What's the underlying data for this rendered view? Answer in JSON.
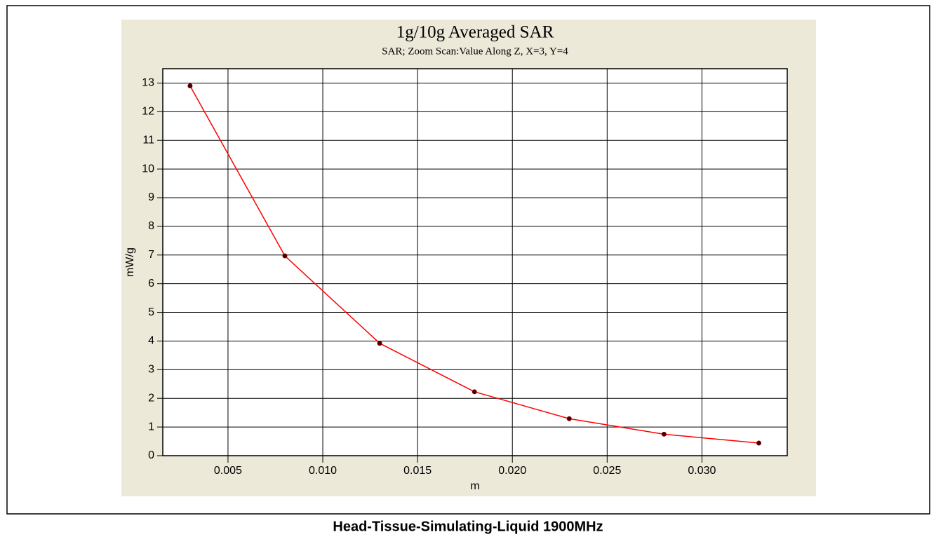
{
  "chart_data": {
    "type": "line",
    "title": "1g/10g Averaged SAR",
    "subtitle": "SAR; Zoom Scan:Value Along Z, X=3, Y=4",
    "x_label": "m",
    "y_label": "mW/g",
    "caption": "Head-Tissue-Simulating-Liquid 1900MHz",
    "x": [
      0.003,
      0.008,
      0.013,
      0.018,
      0.023,
      0.028,
      0.033
    ],
    "series": [
      {
        "color": "#ff0000",
        "values": [
          12.9,
          6.97,
          3.92,
          2.23,
          1.29,
          0.75,
          0.44
        ]
      }
    ],
    "xlim": [
      0.00156,
      0.0345
    ],
    "ylim": [
      0,
      13.5
    ],
    "xticks": [
      0.005,
      {
        "value": 0.01,
        "label": "0.010"
      },
      0.015,
      {
        "value": 0.02,
        "label": "0.020"
      },
      0.025,
      {
        "value": 0.03,
        "label": "0.030"
      }
    ],
    "yticks": [
      0,
      1,
      2,
      3,
      4,
      5,
      6,
      7,
      8,
      9,
      10,
      11,
      12,
      13
    ],
    "grid": true
  }
}
